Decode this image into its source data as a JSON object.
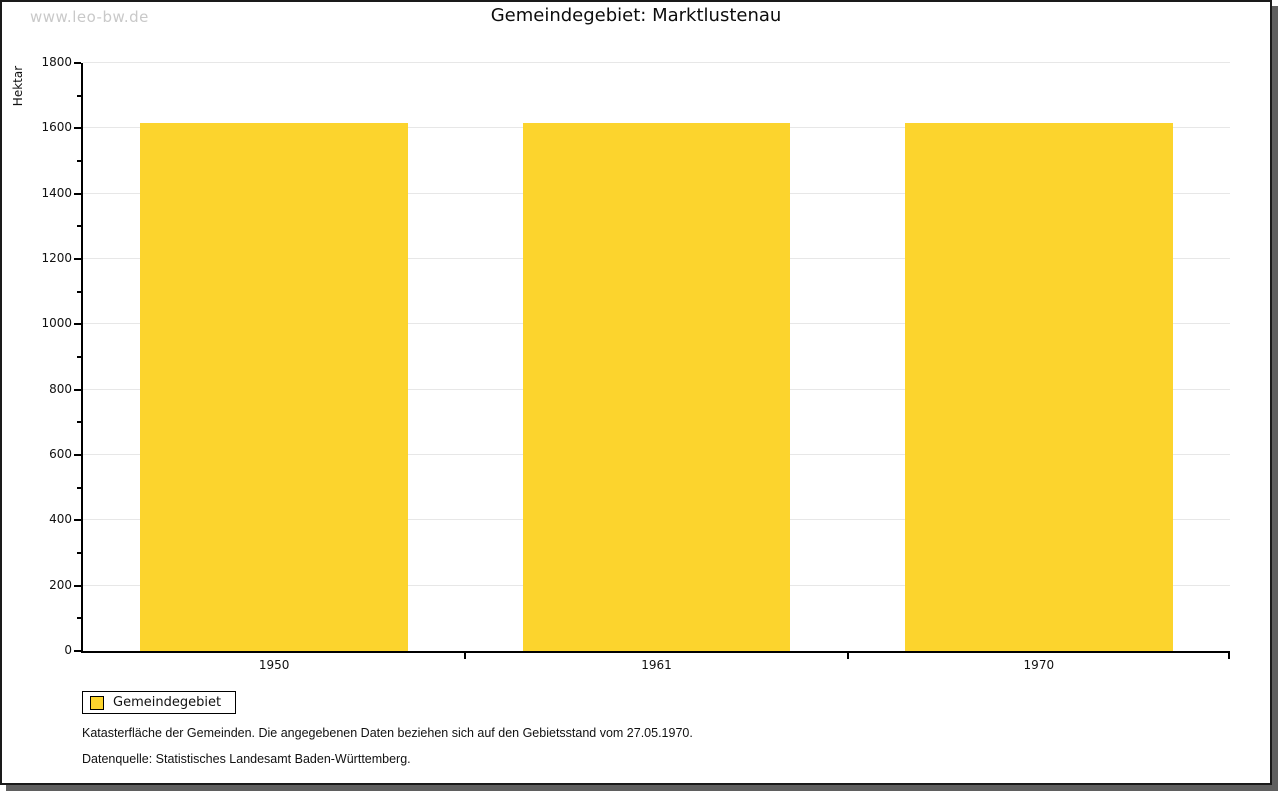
{
  "watermark": "www.leo-bw.de",
  "chart_data": {
    "type": "bar",
    "title": "Gemeindegebiet: Marktlustenau",
    "ylabel": "Hektar",
    "xlabel": "",
    "categories": [
      "1950",
      "1961",
      "1970"
    ],
    "series": [
      {
        "name": "Gemeindegebiet",
        "values": [
          1616,
          1616,
          1616
        ]
      }
    ],
    "ylim": [
      0,
      1800
    ],
    "ytick_major": 200,
    "ytick_minor": 100,
    "grid": "horizontal-major",
    "legend_position": "bottom-left-boxed",
    "bar_color": "#FCD42D",
    "bar_width_fraction": 0.7
  },
  "legend": {
    "label": "Gemeindegebiet"
  },
  "footnotes": {
    "line1": "Katasterfläche der Gemeinden. Die angegebenen Daten beziehen sich auf den Gebietsstand vom 27.05.1970.",
    "line2": "Datenquelle: Statistisches Landesamt Baden-Württemberg."
  },
  "colors": {
    "bar": "#FCD42D",
    "gridline": "#e7e7e7",
    "axis": "#000000",
    "watermark": "#c9c9c9",
    "frame_shadow": "#5f5f5f"
  }
}
